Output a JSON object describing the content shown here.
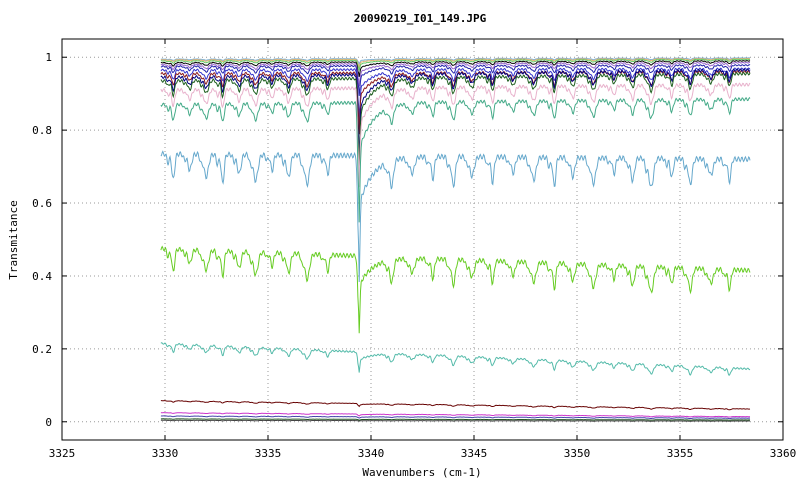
{
  "chart_data": {
    "type": "line",
    "title": "20090219_I01_149.JPG",
    "xlabel": "Wavenumbers (cm-1)",
    "ylabel": "Transmitance",
    "xlim": [
      3325,
      3360
    ],
    "ylim": [
      -0.05,
      1.05
    ],
    "xticks": [
      "3325",
      "3330",
      "3335",
      "3340",
      "3345",
      "3350",
      "3355",
      "3360"
    ],
    "yticks": [
      "0",
      "0.2",
      "0.4",
      "0.6",
      "0.8",
      "1"
    ],
    "grid": true,
    "x_range": [
      3329.8,
      3358.4
    ],
    "absorption_line_positions": [
      3330.4,
      3331.2,
      3332.0,
      3332.8,
      3333.6,
      3334.4,
      3335.2,
      3336.0,
      3336.9,
      3337.9,
      3341.0,
      3342.0,
      3343.0,
      3344.0,
      3344.9,
      3345.9,
      3346.9,
      3347.9,
      3348.9,
      3349.8,
      3350.8,
      3351.8,
      3352.7,
      3353.6,
      3354.6,
      3355.5,
      3356.5,
      3357.4
    ],
    "main_peak_position": 3339.4,
    "series": [
      {
        "color": "#7fb2d6",
        "baseline_start": 0.995,
        "baseline_end": 0.998,
        "line_depth": 0.004,
        "main_dip": 0.01
      },
      {
        "color": "#e0b070",
        "baseline_start": 0.993,
        "baseline_end": 0.996,
        "line_depth": 0.005,
        "main_dip": 0.015
      },
      {
        "color": "#66cc66",
        "baseline_start": 0.99,
        "baseline_end": 0.994,
        "line_depth": 0.007,
        "main_dip": 0.02
      },
      {
        "color": "#000000",
        "baseline_start": 0.985,
        "baseline_end": 0.99,
        "line_depth": 0.01,
        "main_dip": 0.03
      },
      {
        "color": "#9966cc",
        "baseline_start": 0.98,
        "baseline_end": 0.985,
        "line_depth": 0.015,
        "main_dip": 0.045
      },
      {
        "color": "#2222aa",
        "baseline_start": 0.975,
        "baseline_end": 0.978,
        "line_depth": 0.02,
        "main_dip": 0.06
      },
      {
        "color": "#3333cc",
        "baseline_start": 0.965,
        "baseline_end": 0.968,
        "line_depth": 0.03,
        "main_dip": 0.1
      },
      {
        "color": "#8a1a1a",
        "baseline_start": 0.955,
        "baseline_end": 0.96,
        "line_depth": 0.035,
        "main_dip": 0.12
      },
      {
        "color": "#000080",
        "baseline_start": 0.945,
        "baseline_end": 0.965,
        "line_depth": 0.04,
        "main_dip": 0.17
      },
      {
        "color": "#1f5f1f",
        "baseline_start": 0.935,
        "baseline_end": 0.955,
        "line_depth": 0.045,
        "main_dip": 0.19
      },
      {
        "color": "#e8b2cc",
        "baseline_start": 0.91,
        "baseline_end": 0.925,
        "line_depth": 0.05,
        "main_dip": 0.2
      },
      {
        "color": "#44aa88",
        "baseline_start": 0.87,
        "baseline_end": 0.885,
        "line_depth": 0.05,
        "main_dip": 0.24
      },
      {
        "color": "#66a8cc",
        "baseline_start": 0.735,
        "baseline_end": 0.72,
        "line_depth": 0.08,
        "main_dip": 0.25
      },
      {
        "color": "#66cc22",
        "baseline_start": 0.475,
        "baseline_end": 0.415,
        "line_depth": 0.07,
        "main_dip": 0.15
      },
      {
        "color": "#55bbaa",
        "baseline_start": 0.215,
        "baseline_end": 0.145,
        "line_depth": 0.025,
        "main_dip": 0.04
      },
      {
        "color": "#660000",
        "baseline_start": 0.058,
        "baseline_end": 0.035,
        "line_depth": 0.004,
        "main_dip": 0.006
      },
      {
        "color": "#cc33cc",
        "baseline_start": 0.025,
        "baseline_end": 0.014,
        "line_depth": 0.002,
        "main_dip": 0.004
      },
      {
        "color": "#4444aa",
        "baseline_start": 0.016,
        "baseline_end": 0.01,
        "line_depth": 0.002,
        "main_dip": 0.003
      },
      {
        "color": "#225522",
        "baseline_start": 0.008,
        "baseline_end": 0.005,
        "line_depth": 0.001,
        "main_dip": 0.002
      },
      {
        "color": "#444444",
        "baseline_start": 0.004,
        "baseline_end": 0.002,
        "line_depth": 0.001,
        "main_dip": 0.001
      }
    ]
  }
}
